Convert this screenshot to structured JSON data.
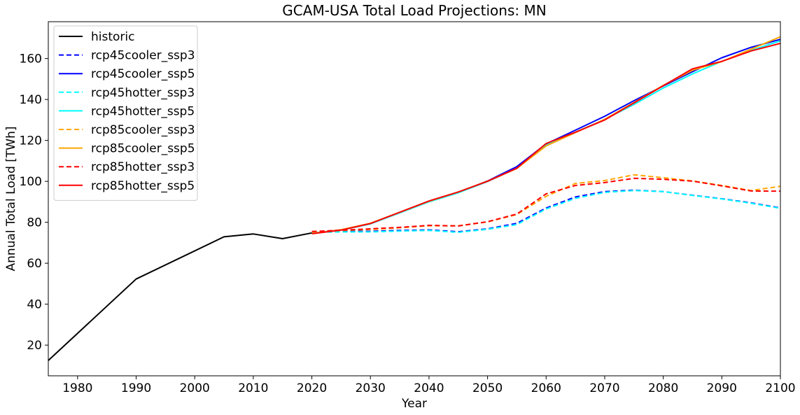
{
  "chart_data": {
    "type": "line",
    "title": "GCAM-USA Total Load Projections: MN",
    "xlabel": "Year",
    "ylabel": "Annual Total Load [TWh]",
    "xlim": [
      1975,
      2100
    ],
    "ylim": [
      5,
      178
    ],
    "xticks": [
      1980,
      1990,
      2000,
      2010,
      2020,
      2030,
      2040,
      2050,
      2060,
      2070,
      2080,
      2090,
      2100
    ],
    "yticks": [
      20,
      40,
      60,
      80,
      100,
      120,
      140,
      160
    ],
    "grid": false,
    "legend_position": "top-left",
    "series": [
      {
        "name": "historic",
        "color": "#000000",
        "dash": false,
        "x": [
          1975,
          1990,
          2005,
          2010,
          2015,
          2020
        ],
        "y": [
          12.5,
          52.3,
          72.9,
          74.3,
          72.0,
          74.8
        ]
      },
      {
        "name": "rcp45cooler_ssp3",
        "color": "#0000ff",
        "dash": true,
        "x": [
          2020,
          2025,
          2030,
          2035,
          2040,
          2045,
          2050,
          2055,
          2060,
          2065,
          2070,
          2075,
          2080,
          2085,
          2090,
          2095,
          2100
        ],
        "y": [
          75.0,
          75.6,
          75.6,
          76.0,
          76.3,
          75.4,
          76.8,
          79.5,
          87.0,
          92.4,
          95.0,
          95.7,
          95.0,
          93.2,
          91.5,
          89.5,
          87.0
        ]
      },
      {
        "name": "rcp45cooler_ssp5",
        "color": "#0000ff",
        "dash": false,
        "x": [
          2020,
          2025,
          2030,
          2035,
          2040,
          2045,
          2050,
          2055,
          2060,
          2065,
          2070,
          2075,
          2080,
          2085,
          2090,
          2095,
          2100
        ],
        "y": [
          74.6,
          76.3,
          79.3,
          84.8,
          90.2,
          94.6,
          100.2,
          107.2,
          118.3,
          125.0,
          131.8,
          139.4,
          146.6,
          153.6,
          160.4,
          165.5,
          169.4
        ]
      },
      {
        "name": "rcp45hotter_ssp3",
        "color": "#00ffff",
        "dash": true,
        "x": [
          2020,
          2025,
          2030,
          2035,
          2040,
          2045,
          2050,
          2055,
          2060,
          2065,
          2070,
          2075,
          2080,
          2085,
          2090,
          2095,
          2100
        ],
        "y": [
          75.1,
          75.3,
          75.3,
          75.7,
          76.0,
          75.1,
          76.6,
          78.9,
          86.5,
          91.7,
          94.6,
          95.5,
          95.0,
          93.1,
          91.4,
          89.3,
          86.8
        ]
      },
      {
        "name": "rcp45hotter_ssp5",
        "color": "#00ffff",
        "dash": false,
        "x": [
          2020,
          2025,
          2030,
          2035,
          2040,
          2045,
          2050,
          2055,
          2060,
          2065,
          2070,
          2075,
          2080,
          2085,
          2090,
          2095,
          2100
        ],
        "y": [
          74.7,
          76.2,
          79.2,
          84.6,
          90.0,
          94.4,
          99.9,
          106.4,
          117.6,
          124.0,
          130.3,
          137.6,
          145.6,
          152.5,
          158.6,
          164.0,
          168.6
        ]
      },
      {
        "name": "rcp85cooler_ssp3",
        "color": "#ffa500",
        "dash": true,
        "x": [
          2020,
          2025,
          2030,
          2035,
          2040,
          2045,
          2050,
          2055,
          2060,
          2065,
          2070,
          2075,
          2080,
          2085,
          2090,
          2095,
          2100
        ],
        "y": [
          75.3,
          76.0,
          76.5,
          77.3,
          78.3,
          78.3,
          80.2,
          83.8,
          92.7,
          99.0,
          100.4,
          103.2,
          101.8,
          100.2,
          98.0,
          95.5,
          97.6
        ]
      },
      {
        "name": "rcp85cooler_ssp5",
        "color": "#ffa500",
        "dash": false,
        "x": [
          2020,
          2025,
          2030,
          2035,
          2040,
          2045,
          2050,
          2055,
          2060,
          2065,
          2070,
          2075,
          2080,
          2085,
          2090,
          2095,
          2100
        ],
        "y": [
          74.5,
          76.4,
          79.5,
          84.9,
          90.3,
          94.8,
          100.1,
          106.3,
          117.3,
          123.8,
          130.3,
          138.5,
          146.9,
          154.3,
          158.5,
          164.6,
          170.6
        ]
      },
      {
        "name": "rcp85hotter_ssp3",
        "color": "#ff0000",
        "dash": true,
        "x": [
          2020,
          2025,
          2030,
          2035,
          2040,
          2045,
          2050,
          2055,
          2060,
          2065,
          2070,
          2075,
          2080,
          2085,
          2090,
          2095,
          2100
        ],
        "y": [
          75.5,
          76.1,
          76.8,
          77.5,
          78.5,
          78.2,
          80.3,
          84.0,
          93.9,
          98.0,
          99.4,
          101.5,
          101.0,
          100.1,
          97.8,
          95.3,
          95.2
        ]
      },
      {
        "name": "rcp85hotter_ssp5",
        "color": "#ff0000",
        "dash": false,
        "x": [
          2020,
          2025,
          2030,
          2035,
          2040,
          2045,
          2050,
          2055,
          2060,
          2065,
          2070,
          2075,
          2080,
          2085,
          2090,
          2095,
          2100
        ],
        "y": [
          74.4,
          76.2,
          79.4,
          84.9,
          90.4,
          94.8,
          100.0,
          106.4,
          118.5,
          124.0,
          130.0,
          138.3,
          146.7,
          155.0,
          158.6,
          163.7,
          167.4
        ]
      }
    ]
  }
}
